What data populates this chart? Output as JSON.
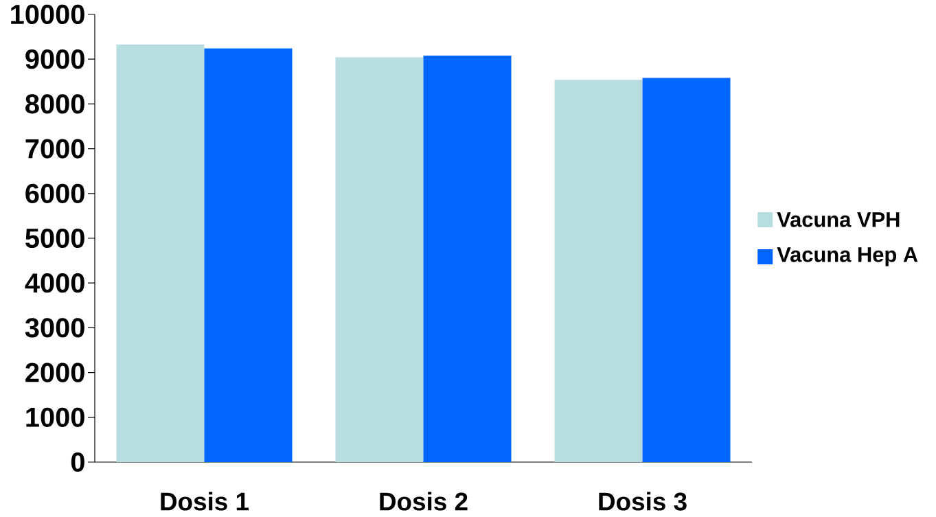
{
  "chart_data": {
    "type": "bar",
    "categories": [
      "Dosis 1",
      "Dosis 2",
      "Dosis 3"
    ],
    "series": [
      {
        "name": "Vacuna VPH",
        "color": "#b8dde0",
        "values": [
          9330,
          9040,
          8540
        ]
      },
      {
        "name": "Vacuna Hep A",
        "color": "#0066ff",
        "values": [
          9240,
          9080,
          8580
        ]
      }
    ],
    "ylim": [
      0,
      10000
    ],
    "yticks": [
      0,
      1000,
      2000,
      3000,
      4000,
      5000,
      6000,
      7000,
      8000,
      9000,
      10000
    ],
    "legend": "right",
    "grid": false
  }
}
